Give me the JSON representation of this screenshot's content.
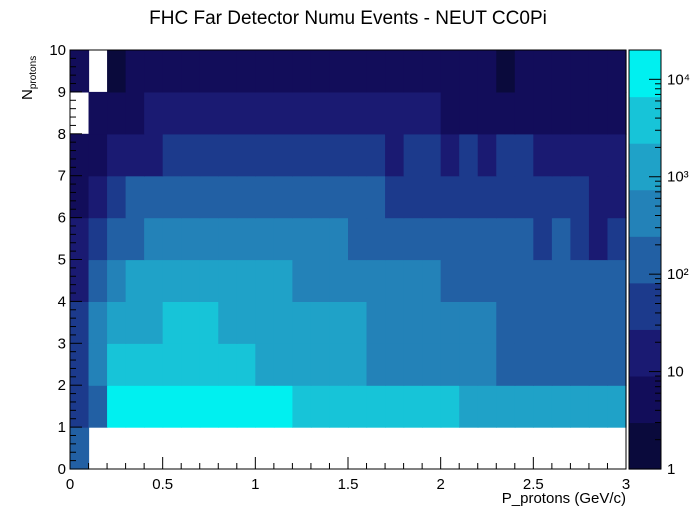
{
  "chart_data": {
    "type": "heatmap",
    "title": "FHC Far Detector Numu Events - NEUT CC0Pi",
    "xlabel": "P_protons (GeV/c)",
    "ylabel_main": "N",
    "ylabel_sub": "protons",
    "xlim": [
      0,
      3
    ],
    "ylim": [
      0,
      10
    ],
    "x_ticks": [
      "0",
      "0.5",
      "1",
      "1.5",
      "2",
      "2.5",
      "3"
    ],
    "x_tick_values": [
      0,
      0.5,
      1,
      1.5,
      2,
      2.5,
      3
    ],
    "y_ticks": [
      "0",
      "1",
      "2",
      "3",
      "4",
      "5",
      "6",
      "7",
      "8",
      "9",
      "10"
    ],
    "y_tick_values": [
      0,
      1,
      2,
      3,
      4,
      5,
      6,
      7,
      8,
      9,
      10
    ],
    "x_bins": 30,
    "y_bins": 10,
    "colorscale": "log",
    "z_range": [
      1,
      20000
    ],
    "colorbar_ticks": [
      {
        "label": "1",
        "value": 1
      },
      {
        "label": "10",
        "value": 10
      },
      {
        "label": "10²",
        "value": 100
      },
      {
        "label": "10³",
        "value": 1000
      },
      {
        "label": "10⁴",
        "value": 10000
      }
    ],
    "palette": [
      "#0a0a3c",
      "#120d5a",
      "#1a1a72",
      "#1c3a8c",
      "#2260a4",
      "#2382b8",
      "#1fa2c8",
      "#17c4d8",
      "#00f0f0"
    ],
    "z_log10": [
      [
        2.1,
        null,
        null,
        null,
        null,
        null,
        null,
        null,
        null,
        null,
        null,
        null,
        null,
        null,
        null,
        null,
        null,
        null,
        null,
        null,
        null,
        null,
        null,
        null,
        null,
        null,
        null,
        null,
        null,
        null
      ],
      [
        1.5,
        2.0,
        4.3,
        4.3,
        4.3,
        4.3,
        4.3,
        4.3,
        4.3,
        3.9,
        3.9,
        3.9,
        3.7,
        3.7,
        3.5,
        3.5,
        3.4,
        3.4,
        3.4,
        3.4,
        3.4,
        3.2,
        3.2,
        3.2,
        3.2,
        3.2,
        3.0,
        3.0,
        3.0,
        3.0
      ],
      [
        1.8,
        2.7,
        3.5,
        3.7,
        3.7,
        3.7,
        3.7,
        3.7,
        3.5,
        3.5,
        3.3,
        3.3,
        3.3,
        3.3,
        3.0,
        3.0,
        2.7,
        2.7,
        2.7,
        2.7,
        2.5,
        2.5,
        2.5,
        2.2,
        2.2,
        2.2,
        2.2,
        2.2,
        2.2,
        2.2
      ],
      [
        1.6,
        2.5,
        3.2,
        3.3,
        3.3,
        3.5,
        3.5,
        3.5,
        3.3,
        3.3,
        3.2,
        3.2,
        3.2,
        3.0,
        3.0,
        3.0,
        2.8,
        2.7,
        2.7,
        2.7,
        2.5,
        2.5,
        2.5,
        2.3,
        2.3,
        2.3,
        2.0,
        2.3,
        2.0,
        2.3
      ],
      [
        1.3,
        2.2,
        2.5,
        3.0,
        3.0,
        3.2,
        3.2,
        3.2,
        3.2,
        3.2,
        3.0,
        3.0,
        2.8,
        2.8,
        2.7,
        2.7,
        2.5,
        2.5,
        2.5,
        2.5,
        2.2,
        2.2,
        2.2,
        2.2,
        2.0,
        2.0,
        2.0,
        2.0,
        2.0,
        2.0
      ],
      [
        1.0,
        1.7,
        2.2,
        2.3,
        2.5,
        2.5,
        2.7,
        2.7,
        2.7,
        2.7,
        2.7,
        2.7,
        2.5,
        2.5,
        2.5,
        2.3,
        2.3,
        2.0,
        2.0,
        2.0,
        2.0,
        2.0,
        2.0,
        2.0,
        2.0,
        1.7,
        2.0,
        1.5,
        1.3,
        1.7
      ],
      [
        0.7,
        1.3,
        1.5,
        2.0,
        2.2,
        2.2,
        2.2,
        2.2,
        2.2,
        2.2,
        2.2,
        2.2,
        2.2,
        2.0,
        2.0,
        2.0,
        2.0,
        1.9,
        1.9,
        1.9,
        1.7,
        1.7,
        1.7,
        1.5,
        1.5,
        1.7,
        1.5,
        1.5,
        1.3,
        1.3
      ],
      [
        0.5,
        0.9,
        1.2,
        1.2,
        1.3,
        1.5,
        1.7,
        1.7,
        1.7,
        1.7,
        1.5,
        1.7,
        1.7,
        1.7,
        1.7,
        1.7,
        1.7,
        1.0,
        1.5,
        1.5,
        1.2,
        1.5,
        1.3,
        1.5,
        1.5,
        1.2,
        1.2,
        1.2,
        1.2,
        1.2
      ],
      [
        null,
        0.5,
        0.5,
        0.9,
        1.0,
        1.0,
        1.0,
        1.0,
        1.0,
        1.0,
        1.0,
        1.0,
        1.0,
        1.0,
        1.0,
        1.0,
        1.0,
        1.0,
        1.0,
        1.0,
        0.9,
        0.9,
        0.9,
        0.9,
        0.9,
        0.9,
        0.9,
        0.9,
        0.5,
        0.5
      ],
      [
        0.5,
        null,
        0.3,
        0.7,
        0.5,
        0.5,
        0.7,
        0.7,
        0.7,
        0.7,
        0.7,
        0.7,
        0.7,
        0.7,
        0.5,
        0.5,
        0.7,
        0.5,
        0.5,
        0.5,
        0.5,
        0.5,
        0.5,
        0.3,
        0.5,
        0.5,
        0.7,
        0.7,
        0.7,
        0.7
      ]
    ]
  }
}
